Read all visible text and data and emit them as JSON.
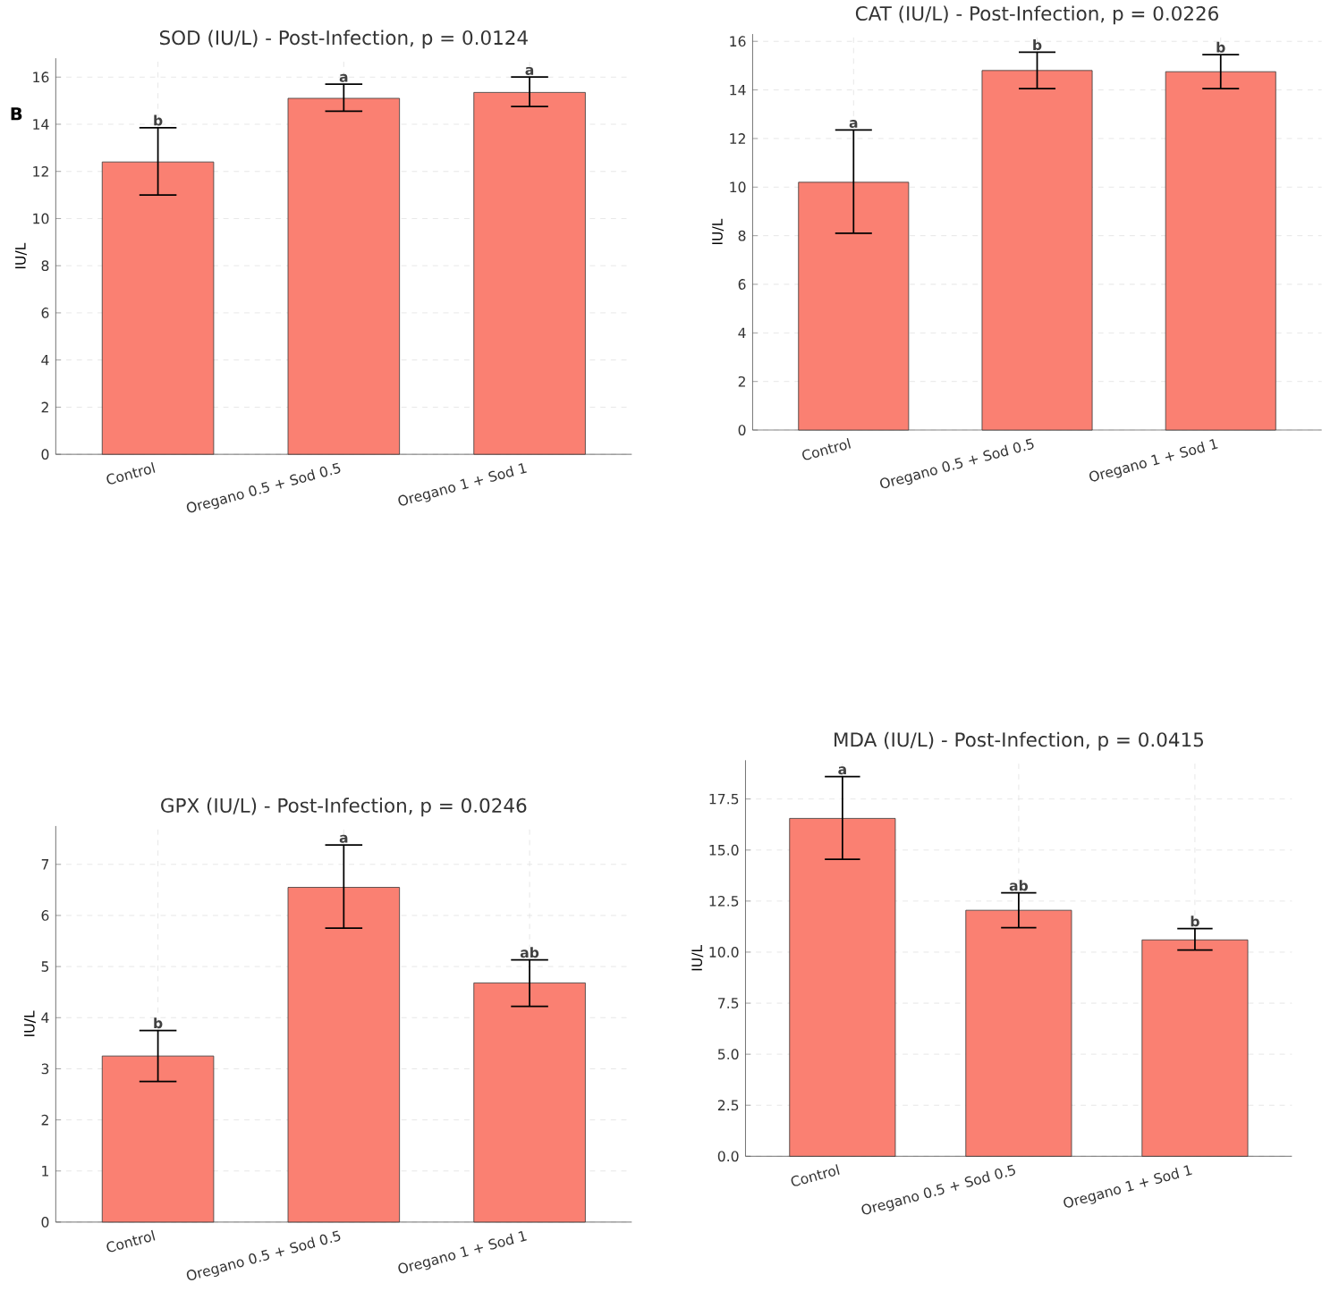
{
  "chart_data": [
    {
      "type": "bar",
      "title": "SOD (IU/L) - Post-Infection, p = 0.0124",
      "ylabel": "IU/L",
      "categories": [
        "Control",
        "Oregano 0.5 + Sod 0.5",
        "Oregano 1 + Sod 1"
      ],
      "values": [
        12.4,
        15.1,
        15.35
      ],
      "errors": [
        [
          11.0,
          13.85
        ],
        [
          14.55,
          15.7
        ],
        [
          14.75,
          16.0
        ]
      ],
      "color": "#fa8072",
      "ylim": [
        0,
        16.8
      ],
      "yticks": [
        0,
        2,
        4,
        6,
        8,
        10,
        12,
        14,
        16
      ],
      "grid": true,
      "annotations": [
        "B",
        {
          "text": "b",
          "x": "Control",
          "y": 13.85
        },
        {
          "text": "a",
          "x": "Oregano 0.5 + Sod 0.5",
          "y": 15.7
        },
        {
          "text": "a",
          "x": "Oregano 1 + Sod 1",
          "y": 16.0
        }
      ]
    },
    {
      "type": "bar",
      "title": "CAT (IU/L) - Post-Infection, p = 0.0226",
      "ylabel": "IU/L",
      "categories": [
        "Control",
        "Oregano 0.5 + Sod 0.5",
        "Oregano 1 + Sod 1"
      ],
      "values": [
        10.2,
        14.8,
        14.75
      ],
      "errors": [
        [
          8.1,
          12.35
        ],
        [
          14.05,
          15.55
        ],
        [
          14.05,
          15.45
        ]
      ],
      "color": "#fa8072",
      "ylim": [
        0,
        16.3
      ],
      "yticks": [
        0,
        2,
        4,
        6,
        8,
        10,
        12,
        14,
        16
      ],
      "grid": true,
      "annotations": [
        {
          "text": "a",
          "x": "Control",
          "y": 12.35
        },
        {
          "text": "b",
          "x": "Oregano 0.5 + Sod 0.5",
          "y": 15.55
        },
        {
          "text": "b",
          "x": "Oregano 1 + Sod 1",
          "y": 15.45
        }
      ]
    },
    {
      "type": "bar",
      "title": "GPX (IU/L) - Post-Infection, p = 0.0246",
      "ylabel": "IU/L",
      "categories": [
        "Control",
        "Oregano 0.5 + Sod 0.5",
        "Oregano 1 + Sod 1"
      ],
      "values": [
        3.25,
        6.55,
        4.68
      ],
      "errors": [
        [
          2.75,
          3.75
        ],
        [
          5.75,
          7.38
        ],
        [
          4.22,
          5.13
        ]
      ],
      "color": "#fa8072",
      "ylim": [
        0,
        7.75
      ],
      "yticks": [
        0,
        1,
        2,
        3,
        4,
        5,
        6,
        7
      ],
      "grid": true,
      "annotations": [
        {
          "text": "b",
          "x": "Control",
          "y": 3.75
        },
        {
          "text": "a",
          "x": "Oregano 0.5 + Sod 0.5",
          "y": 7.38
        },
        {
          "text": "ab",
          "x": "Oregano 1 + Sod 1",
          "y": 5.13
        }
      ]
    },
    {
      "type": "bar",
      "title": "MDA (IU/L) - Post-Infection, p = 0.0415",
      "ylabel": "IU/L",
      "categories": [
        "Control",
        "Oregano 0.5 + Sod 0.5",
        "Oregano 1 + Sod 1"
      ],
      "values": [
        16.55,
        12.05,
        10.6
      ],
      "errors": [
        [
          14.55,
          18.6
        ],
        [
          11.2,
          12.9
        ],
        [
          10.1,
          11.15
        ]
      ],
      "color": "#fa8072",
      "ylim": [
        0,
        19.4
      ],
      "yticks": [
        {
          "value": 0,
          "label": "0.0"
        },
        {
          "value": 2.5,
          "label": "2.5"
        },
        {
          "value": 5,
          "label": "5.0"
        },
        {
          "value": 7.5,
          "label": "7.5"
        },
        {
          "value": 10,
          "label": "10.0"
        },
        {
          "value": 12.5,
          "label": "12.5"
        },
        {
          "value": 15,
          "label": "15.0"
        },
        {
          "value": 17.5,
          "label": "17.5"
        }
      ],
      "grid": true,
      "annotations": [
        {
          "text": "a",
          "x": "Control",
          "y": 18.6
        },
        {
          "text": "ab",
          "x": "Oregano 0.5 + Sod 0.5",
          "y": 12.9
        },
        {
          "text": "b",
          "x": "Oregano 1 + Sod 1",
          "y": 11.15
        }
      ]
    }
  ]
}
